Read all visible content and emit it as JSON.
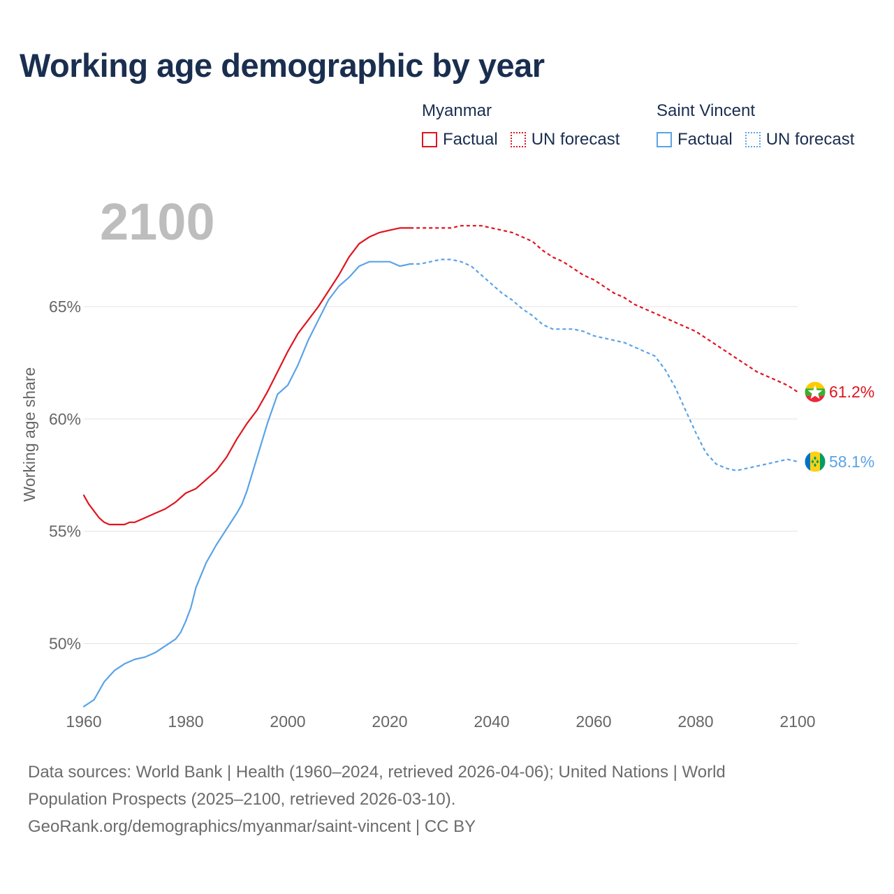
{
  "title": "Working age demographic by year",
  "chart_data": {
    "type": "line",
    "year_label": "2100",
    "xlim": [
      1960,
      2100
    ],
    "ylim": [
      47,
      71
    ],
    "x_ticks": [
      "1960",
      "1980",
      "2000",
      "2020",
      "2040",
      "2060",
      "2080",
      "2100"
    ],
    "y_ticks": [
      {
        "value": 50,
        "label": "50%"
      },
      {
        "value": 55,
        "label": "55%"
      },
      {
        "value": 60,
        "label": "60%"
      },
      {
        "value": 65,
        "label": "65%"
      }
    ],
    "ylabel": "Working age share",
    "series": [
      {
        "name": "Myanmar",
        "color": "#e0141e",
        "end_label": "61.2%",
        "flag": "myanmar-flag",
        "factual": [
          [
            1960,
            56.6
          ],
          [
            1961,
            56.2
          ],
          [
            1962,
            55.9
          ],
          [
            1963,
            55.6
          ],
          [
            1964,
            55.4
          ],
          [
            1965,
            55.3
          ],
          [
            1966,
            55.3
          ],
          [
            1967,
            55.3
          ],
          [
            1968,
            55.3
          ],
          [
            1969,
            55.4
          ],
          [
            1970,
            55.4
          ],
          [
            1972,
            55.6
          ],
          [
            1974,
            55.8
          ],
          [
            1976,
            56.0
          ],
          [
            1978,
            56.3
          ],
          [
            1980,
            56.7
          ],
          [
            1982,
            56.9
          ],
          [
            1984,
            57.3
          ],
          [
            1986,
            57.7
          ],
          [
            1988,
            58.3
          ],
          [
            1990,
            59.1
          ],
          [
            1992,
            59.8
          ],
          [
            1994,
            60.4
          ],
          [
            1996,
            61.2
          ],
          [
            1998,
            62.1
          ],
          [
            2000,
            63.0
          ],
          [
            2002,
            63.8
          ],
          [
            2004,
            64.4
          ],
          [
            2006,
            65.0
          ],
          [
            2008,
            65.7
          ],
          [
            2010,
            66.4
          ],
          [
            2012,
            67.2
          ],
          [
            2014,
            67.8
          ],
          [
            2016,
            68.1
          ],
          [
            2018,
            68.3
          ],
          [
            2020,
            68.4
          ],
          [
            2022,
            68.5
          ],
          [
            2024,
            68.5
          ]
        ],
        "forecast": [
          [
            2024,
            68.5
          ],
          [
            2028,
            68.5
          ],
          [
            2032,
            68.5
          ],
          [
            2034,
            68.6
          ],
          [
            2036,
            68.6
          ],
          [
            2038,
            68.6
          ],
          [
            2040,
            68.5
          ],
          [
            2042,
            68.4
          ],
          [
            2044,
            68.3
          ],
          [
            2046,
            68.1
          ],
          [
            2048,
            67.9
          ],
          [
            2050,
            67.5
          ],
          [
            2052,
            67.2
          ],
          [
            2054,
            67.0
          ],
          [
            2056,
            66.7
          ],
          [
            2058,
            66.4
          ],
          [
            2060,
            66.2
          ],
          [
            2062,
            65.9
          ],
          [
            2064,
            65.6
          ],
          [
            2066,
            65.4
          ],
          [
            2068,
            65.1
          ],
          [
            2070,
            64.9
          ],
          [
            2072,
            64.7
          ],
          [
            2074,
            64.5
          ],
          [
            2076,
            64.3
          ],
          [
            2078,
            64.1
          ],
          [
            2080,
            63.9
          ],
          [
            2082,
            63.6
          ],
          [
            2084,
            63.3
          ],
          [
            2086,
            63.0
          ],
          [
            2088,
            62.7
          ],
          [
            2090,
            62.4
          ],
          [
            2092,
            62.1
          ],
          [
            2094,
            61.9
          ],
          [
            2096,
            61.7
          ],
          [
            2098,
            61.5
          ],
          [
            2100,
            61.2
          ]
        ]
      },
      {
        "name": "Saint Vincent",
        "color": "#5ba3e6",
        "end_label": "58.1%",
        "flag": "saint-vincent-flag",
        "factual": [
          [
            1960,
            47.2
          ],
          [
            1962,
            47.5
          ],
          [
            1964,
            48.3
          ],
          [
            1966,
            48.8
          ],
          [
            1968,
            49.1
          ],
          [
            1970,
            49.3
          ],
          [
            1972,
            49.4
          ],
          [
            1974,
            49.6
          ],
          [
            1976,
            49.9
          ],
          [
            1978,
            50.2
          ],
          [
            1979,
            50.5
          ],
          [
            1980,
            51.0
          ],
          [
            1981,
            51.6
          ],
          [
            1982,
            52.5
          ],
          [
            1984,
            53.6
          ],
          [
            1986,
            54.4
          ],
          [
            1988,
            55.1
          ],
          [
            1990,
            55.8
          ],
          [
            1991,
            56.2
          ],
          [
            1992,
            56.8
          ],
          [
            1994,
            58.3
          ],
          [
            1996,
            59.8
          ],
          [
            1998,
            61.1
          ],
          [
            2000,
            61.5
          ],
          [
            2002,
            62.4
          ],
          [
            2004,
            63.5
          ],
          [
            2006,
            64.4
          ],
          [
            2008,
            65.3
          ],
          [
            2010,
            65.9
          ],
          [
            2012,
            66.3
          ],
          [
            2014,
            66.8
          ],
          [
            2016,
            67.0
          ],
          [
            2018,
            67.0
          ],
          [
            2020,
            67.0
          ],
          [
            2022,
            66.8
          ],
          [
            2024,
            66.9
          ]
        ],
        "forecast": [
          [
            2024,
            66.9
          ],
          [
            2026,
            66.9
          ],
          [
            2028,
            67.0
          ],
          [
            2030,
            67.1
          ],
          [
            2032,
            67.1
          ],
          [
            2034,
            67.0
          ],
          [
            2036,
            66.8
          ],
          [
            2038,
            66.4
          ],
          [
            2040,
            66.0
          ],
          [
            2042,
            65.6
          ],
          [
            2044,
            65.3
          ],
          [
            2046,
            64.9
          ],
          [
            2048,
            64.6
          ],
          [
            2050,
            64.2
          ],
          [
            2052,
            64.0
          ],
          [
            2054,
            64.0
          ],
          [
            2056,
            64.0
          ],
          [
            2058,
            63.9
          ],
          [
            2060,
            63.7
          ],
          [
            2062,
            63.6
          ],
          [
            2064,
            63.5
          ],
          [
            2066,
            63.4
          ],
          [
            2068,
            63.2
          ],
          [
            2070,
            63.0
          ],
          [
            2072,
            62.8
          ],
          [
            2074,
            62.2
          ],
          [
            2076,
            61.4
          ],
          [
            2078,
            60.4
          ],
          [
            2080,
            59.4
          ],
          [
            2082,
            58.5
          ],
          [
            2084,
            58.0
          ],
          [
            2086,
            57.8
          ],
          [
            2088,
            57.7
          ],
          [
            2090,
            57.8
          ],
          [
            2092,
            57.9
          ],
          [
            2094,
            58.0
          ],
          [
            2096,
            58.1
          ],
          [
            2098,
            58.2
          ],
          [
            2100,
            58.1
          ]
        ]
      }
    ]
  },
  "legend": {
    "factual_label": "Factual",
    "forecast_label": "UN forecast"
  },
  "footer": {
    "line1": "Data sources: World Bank | Health (1960–2024, retrieved 2026-04-06); United Nations | World",
    "line2": "Population Prospects (2025–2100, retrieved 2026-03-10).",
    "line3": "GeoRank.org/demographics/myanmar/saint-vincent | CC BY"
  }
}
